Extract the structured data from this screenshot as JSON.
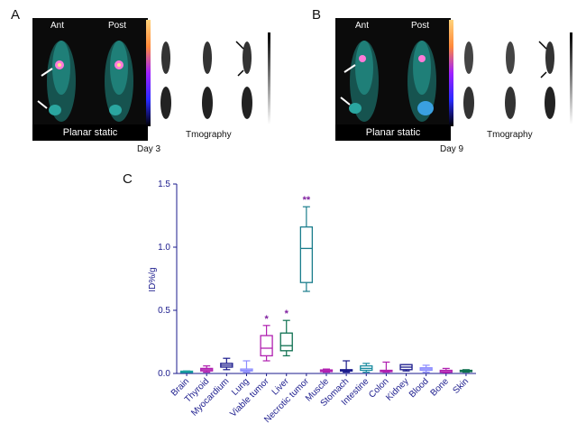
{
  "panels": {
    "a": {
      "letter": "A",
      "ant": "Ant",
      "post": "Post",
      "footer": "Planar static",
      "day": "Day 3",
      "tomo": "Tmography"
    },
    "b": {
      "letter": "B",
      "ant": "Ant",
      "post": "Post",
      "footer": "Planar static",
      "day": "Day 9",
      "tomo": "Tmography"
    },
    "c": {
      "letter": "C"
    }
  },
  "colors": {
    "axis": "#1a1a8c",
    "scan_body": "#1f6f6a",
    "hotspot": "#ff7ad9",
    "boxes": [
      "#1aa0a0",
      "#b020b0",
      "#1a1a8c",
      "#8c8cff",
      "#b020b0",
      "#0e7050",
      "#1a7d8c",
      "#b020b0",
      "#1a1a8c",
      "#1a8ca0",
      "#b020b0",
      "#1a1a8c",
      "#8c8cff",
      "#b020b0",
      "#0e7050"
    ]
  },
  "chart_data": {
    "type": "box",
    "ylabel": "ID%/g",
    "ylim": [
      0,
      1.5
    ],
    "yticks": [
      "0.0",
      "0.5",
      "1.0",
      "1.5"
    ],
    "categories": [
      "Brain",
      "Thyroid",
      "Myocardium",
      "Lung",
      "Viable tumor",
      "Liver",
      "Necrotic tumor",
      "Muscle",
      "Stomach",
      "Intestine",
      "Colon",
      "Kidney",
      "Blood",
      "Bone",
      "Skin"
    ],
    "boxes": [
      {
        "min": 0.01,
        "q1": 0.012,
        "median": 0.015,
        "q3": 0.018,
        "max": 0.02
      },
      {
        "min": 0.01,
        "q1": 0.02,
        "median": 0.03,
        "q3": 0.04,
        "max": 0.06
      },
      {
        "min": 0.03,
        "q1": 0.05,
        "median": 0.065,
        "q3": 0.08,
        "max": 0.12
      },
      {
        "min": 0.01,
        "q1": 0.02,
        "median": 0.025,
        "q3": 0.035,
        "max": 0.1
      },
      {
        "min": 0.1,
        "q1": 0.14,
        "median": 0.2,
        "q3": 0.3,
        "max": 0.38
      },
      {
        "min": 0.14,
        "q1": 0.18,
        "median": 0.22,
        "q3": 0.32,
        "max": 0.42
      },
      {
        "min": 0.65,
        "q1": 0.72,
        "median": 0.99,
        "q3": 1.16,
        "max": 1.32
      },
      {
        "min": 0.01,
        "q1": 0.015,
        "median": 0.02,
        "q3": 0.028,
        "max": 0.035
      },
      {
        "min": 0.01,
        "q1": 0.02,
        "median": 0.025,
        "q3": 0.03,
        "max": 0.1
      },
      {
        "min": 0.01,
        "q1": 0.025,
        "median": 0.04,
        "q3": 0.06,
        "max": 0.08
      },
      {
        "min": 0.01,
        "q1": 0.015,
        "median": 0.02,
        "q3": 0.025,
        "max": 0.09
      },
      {
        "min": 0.02,
        "q1": 0.03,
        "median": 0.05,
        "q3": 0.07,
        "max": 0.07
      },
      {
        "min": 0.01,
        "q1": 0.025,
        "median": 0.035,
        "q3": 0.045,
        "max": 0.065
      },
      {
        "min": 0.005,
        "q1": 0.01,
        "median": 0.015,
        "q3": 0.025,
        "max": 0.04
      },
      {
        "min": 0.01,
        "q1": 0.015,
        "median": 0.02,
        "q3": 0.025,
        "max": 0.03
      }
    ],
    "annotations": [
      {
        "category": "Viable tumor",
        "text": "*"
      },
      {
        "category": "Liver",
        "text": "*"
      },
      {
        "category": "Necrotic tumor",
        "text": "**"
      }
    ]
  }
}
